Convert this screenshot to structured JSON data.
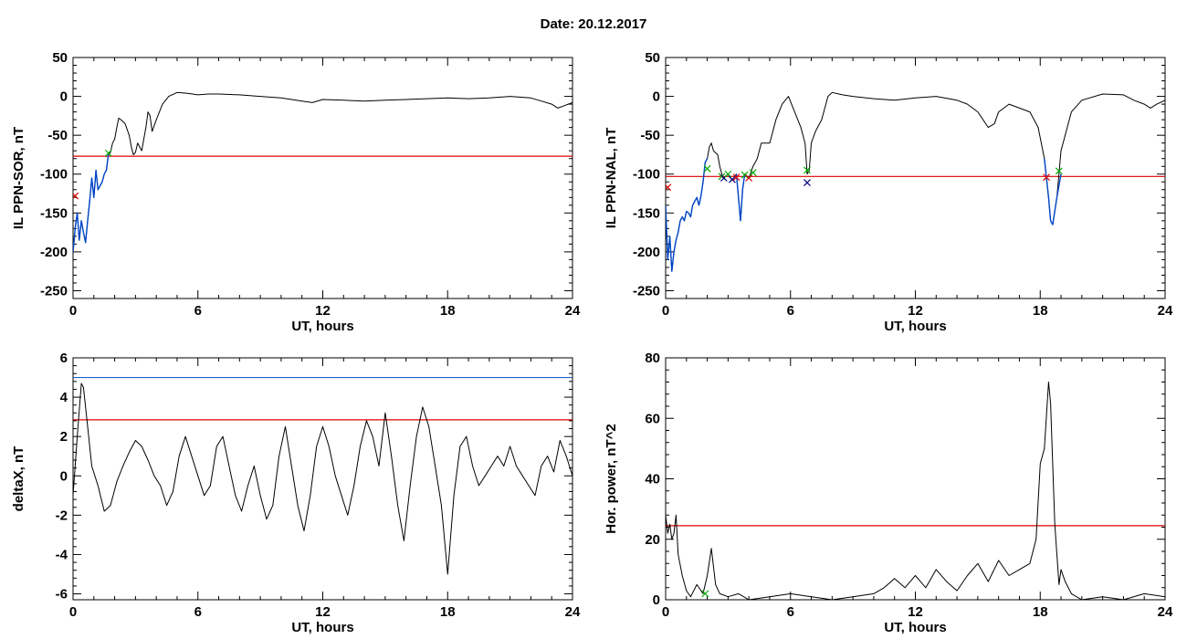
{
  "page": {
    "title": "Date:  20.12.2017"
  },
  "chart_data": [
    {
      "type": "line",
      "xlabel": "UT, hours",
      "ylabel": "IL PPN-SOR, nT",
      "xlim": [
        0,
        24
      ],
      "ylim": [
        -260,
        50
      ],
      "xticks": [
        0,
        6,
        12,
        18,
        24
      ],
      "yticks": [
        50,
        0,
        -50,
        -100,
        -150,
        -200,
        -250
      ],
      "series": [
        {
          "color": "#000000",
          "x": [
            0.0,
            0.1,
            0.2,
            0.3,
            0.4,
            0.5,
            0.6,
            0.7,
            0.8,
            0.9,
            1.0,
            1.1,
            1.2,
            1.3,
            1.4,
            1.5,
            1.6,
            1.7,
            1.8,
            1.9,
            2.0,
            2.1,
            2.2,
            2.3,
            2.5,
            2.7,
            2.8,
            2.9,
            3.0,
            3.1,
            3.2,
            3.3,
            3.4,
            3.5,
            3.6,
            3.7,
            3.8,
            4.0,
            4.3,
            4.6,
            5.0,
            5.5,
            6.0,
            6.5,
            7.0,
            8.0,
            9.0,
            10.0,
            11.0,
            11.5,
            12.0,
            13.0,
            14.0,
            15.0,
            16.0,
            17.0,
            18.0,
            19.0,
            20.0,
            21.0,
            22.0,
            22.5,
            23.0,
            23.3,
            23.6,
            23.8,
            24.0
          ],
          "y": [
            -200,
            -170,
            -150,
            -185,
            -160,
            -175,
            -188,
            -160,
            -135,
            -105,
            -130,
            -95,
            -120,
            -115,
            -110,
            -100,
            -95,
            -75,
            -72,
            -60,
            -55,
            -40,
            -28,
            -30,
            -35,
            -50,
            -65,
            -75,
            -72,
            -60,
            -65,
            -70,
            -55,
            -40,
            -20,
            -25,
            -45,
            -30,
            -10,
            0,
            5,
            4,
            2,
            3,
            3,
            2,
            0,
            -2,
            -6,
            -8,
            -4,
            -5,
            -6,
            -5,
            -4,
            -3,
            -2,
            -3,
            -2,
            0,
            -2,
            -6,
            -10,
            -15,
            -12,
            -10,
            -8
          ]
        },
        {
          "color": "#0046c8",
          "x": [
            0.0,
            0.1,
            0.2,
            0.3,
            0.4,
            0.5,
            0.6,
            0.7,
            0.8,
            0.9,
            1.0,
            1.1,
            1.2,
            1.3,
            1.4,
            1.5,
            1.6,
            1.7
          ],
          "y": [
            -200,
            -170,
            -150,
            -185,
            -160,
            -175,
            -188,
            -160,
            -135,
            -105,
            -130,
            -95,
            -120,
            -115,
            -110,
            -100,
            -95,
            -75
          ]
        }
      ],
      "threshold_lines": [
        {
          "value": -77,
          "color": "#dd0000"
        }
      ],
      "markers": [
        {
          "x": 1.7,
          "y": -73,
          "color": "#00aa00"
        },
        {
          "x": 0.1,
          "y": -128,
          "color": "#dd0000"
        }
      ]
    },
    {
      "type": "line",
      "xlabel": "UT, hours",
      "ylabel": "IL PPN-NAL, nT",
      "xlim": [
        0,
        24
      ],
      "ylim": [
        -260,
        50
      ],
      "xticks": [
        0,
        6,
        12,
        18,
        24
      ],
      "yticks": [
        50,
        0,
        -50,
        -100,
        -150,
        -200,
        -250
      ],
      "series": [
        {
          "color": "#000000",
          "x": [
            0.0,
            0.1,
            0.2,
            0.3,
            0.4,
            0.5,
            0.6,
            0.7,
            0.8,
            0.9,
            1.0,
            1.1,
            1.2,
            1.3,
            1.4,
            1.5,
            1.6,
            1.7,
            1.8,
            1.9,
            2.0,
            2.1,
            2.2,
            2.3,
            2.5,
            2.6,
            2.7,
            2.8,
            3.0,
            3.2,
            3.4,
            3.5,
            3.6,
            3.7,
            3.8,
            4.0,
            4.2,
            4.4,
            4.6,
            5.0,
            5.3,
            5.6,
            5.9,
            6.2,
            6.5,
            6.7,
            6.8,
            6.9,
            7.0,
            7.2,
            7.5,
            7.8,
            8.0,
            8.5,
            9.0,
            10.0,
            11.0,
            12.0,
            13.0,
            14.0,
            14.5,
            15.0,
            15.5,
            15.8,
            16.0,
            16.5,
            17.0,
            17.5,
            17.9,
            18.2,
            18.4,
            18.5,
            18.6,
            18.8,
            19.0,
            19.5,
            20.0,
            21.0,
            22.0,
            22.5,
            23.0,
            23.3,
            23.6,
            24.0
          ],
          "y": [
            -140,
            -210,
            -180,
            -225,
            -200,
            -185,
            -175,
            -160,
            -155,
            -160,
            -148,
            -150,
            -155,
            -140,
            -135,
            -130,
            -140,
            -128,
            -110,
            -85,
            -80,
            -65,
            -60,
            -70,
            -75,
            -90,
            -100,
            -105,
            -100,
            -108,
            -100,
            -130,
            -160,
            -120,
            -100,
            -105,
            -90,
            -80,
            -60,
            -60,
            -30,
            -10,
            0,
            -20,
            -40,
            -60,
            -100,
            -95,
            -60,
            -45,
            -30,
            0,
            5,
            2,
            0,
            -3,
            -5,
            -2,
            0,
            -5,
            -10,
            -20,
            -40,
            -35,
            -20,
            -10,
            -15,
            -20,
            -40,
            -80,
            -130,
            -160,
            -165,
            -130,
            -70,
            -20,
            -5,
            3,
            2,
            -5,
            -10,
            -15,
            -10,
            -5
          ]
        },
        {
          "color": "#0046c8",
          "x": [
            0.0,
            0.1,
            0.2,
            0.3,
            0.4,
            0.5,
            0.6,
            0.7,
            0.8,
            0.9,
            1.0,
            1.1,
            1.2,
            1.3,
            1.4,
            1.5,
            1.6,
            1.7,
            1.8,
            1.9,
            2.0
          ],
          "y": [
            -140,
            -210,
            -180,
            -225,
            -200,
            -185,
            -175,
            -160,
            -155,
            -160,
            -148,
            -150,
            -155,
            -140,
            -135,
            -130,
            -140,
            -128,
            -110,
            -85,
            -80
          ]
        },
        {
          "color": "#0046c8",
          "x": [
            3.4,
            3.5,
            3.6,
            3.7,
            3.8
          ],
          "y": [
            -100,
            -130,
            -160,
            -120,
            -100
          ]
        },
        {
          "color": "#0046c8",
          "x": [
            18.2,
            18.4,
            18.5,
            18.6,
            18.8,
            19.0
          ],
          "y": [
            -80,
            -130,
            -160,
            -165,
            -130,
            -100
          ]
        }
      ],
      "threshold_lines": [
        {
          "value": -103,
          "color": "#dd0000"
        }
      ],
      "markers": [
        {
          "x": 2.0,
          "y": -93,
          "color": "#00aa00"
        },
        {
          "x": 2.7,
          "y": -103,
          "color": "#00aa00"
        },
        {
          "x": 2.8,
          "y": -105,
          "color": "#000080"
        },
        {
          "x": 3.0,
          "y": -100,
          "color": "#00aa00"
        },
        {
          "x": 3.2,
          "y": -107,
          "color": "#000080"
        },
        {
          "x": 3.4,
          "y": -104,
          "color": "#dd0000"
        },
        {
          "x": 3.8,
          "y": -101,
          "color": "#00aa00"
        },
        {
          "x": 4.0,
          "y": -105,
          "color": "#dd0000"
        },
        {
          "x": 4.2,
          "y": -98,
          "color": "#00aa00"
        },
        {
          "x": 6.8,
          "y": -95,
          "color": "#00aa00"
        },
        {
          "x": 6.8,
          "y": -111,
          "color": "#000080"
        },
        {
          "x": 18.3,
          "y": -104,
          "color": "#dd0000"
        },
        {
          "x": 18.9,
          "y": -96,
          "color": "#00aa00"
        },
        {
          "x": 0.1,
          "y": -117,
          "color": "#dd0000"
        }
      ]
    },
    {
      "type": "line",
      "xlabel": "UT, hours",
      "ylabel": "deltaX, nT",
      "xlim": [
        0,
        24
      ],
      "ylim": [
        -6.3,
        6
      ],
      "xticks": [
        0,
        6,
        12,
        18,
        24
      ],
      "yticks": [
        6,
        4,
        2,
        0,
        -2,
        -4,
        -6
      ],
      "series": [
        {
          "color": "#000000",
          "x": [
            0.0,
            0.2,
            0.4,
            0.5,
            0.7,
            0.9,
            1.2,
            1.5,
            1.8,
            2.1,
            2.4,
            2.7,
            3.0,
            3.3,
            3.6,
            3.9,
            4.2,
            4.5,
            4.8,
            5.1,
            5.4,
            5.7,
            6.0,
            6.3,
            6.6,
            6.9,
            7.2,
            7.5,
            7.8,
            8.1,
            8.4,
            8.7,
            9.0,
            9.3,
            9.6,
            9.9,
            10.2,
            10.5,
            10.8,
            11.1,
            11.4,
            11.7,
            12.0,
            12.3,
            12.6,
            12.9,
            13.2,
            13.5,
            13.8,
            14.1,
            14.4,
            14.7,
            15.0,
            15.3,
            15.6,
            15.9,
            16.2,
            16.5,
            16.8,
            17.1,
            17.4,
            17.7,
            18.0,
            18.3,
            18.6,
            18.9,
            19.2,
            19.5,
            19.8,
            20.1,
            20.4,
            20.7,
            21.0,
            21.3,
            21.6,
            21.9,
            22.2,
            22.5,
            22.8,
            23.1,
            23.4,
            23.7,
            24.0
          ],
          "y": [
            -1,
            2,
            4.7,
            4.5,
            2.5,
            0.5,
            -0.5,
            -1.8,
            -1.5,
            -0.3,
            0.5,
            1.2,
            1.8,
            1.5,
            0.8,
            0,
            -0.5,
            -1.5,
            -0.8,
            1,
            2,
            1,
            0,
            -1,
            -0.5,
            1.5,
            2,
            0.5,
            -1,
            -1.8,
            -0.5,
            0.5,
            -1,
            -2.2,
            -1.5,
            1,
            2.5,
            0.5,
            -1.5,
            -2.8,
            -1,
            1.5,
            2.5,
            1.5,
            0,
            -1,
            -2,
            -0.5,
            1.5,
            2.8,
            2,
            0.5,
            3.2,
            1,
            -1.5,
            -3.3,
            -0.5,
            2,
            3.5,
            2.5,
            0.5,
            -1.5,
            -5,
            -1,
            1.5,
            2,
            0.5,
            -0.5,
            0,
            0.5,
            1,
            0.5,
            1.5,
            0.5,
            0,
            -0.5,
            -1,
            0.5,
            1,
            0.2,
            1.8,
            1,
            0
          ]
        }
      ],
      "threshold_lines": [
        {
          "value": 5.0,
          "color": "#1e64c8"
        },
        {
          "value": 2.85,
          "color": "#dd0000"
        }
      ],
      "markers": []
    },
    {
      "type": "line",
      "xlabel": "UT, hours",
      "ylabel": "Hor. power, nT^2",
      "xlim": [
        0,
        24
      ],
      "ylim": [
        0,
        80
      ],
      "xticks": [
        0,
        6,
        12,
        18,
        24
      ],
      "yticks": [
        80,
        60,
        40,
        20,
        0
      ],
      "series": [
        {
          "color": "#000000",
          "x": [
            0.0,
            0.1,
            0.2,
            0.3,
            0.4,
            0.5,
            0.6,
            0.8,
            1.0,
            1.2,
            1.5,
            1.8,
            2.0,
            2.2,
            2.4,
            2.6,
            3.0,
            3.5,
            4.0,
            5.0,
            6.0,
            7.0,
            8.0,
            9.0,
            10.0,
            10.5,
            11.0,
            11.5,
            12.0,
            12.5,
            13.0,
            13.5,
            14.0,
            14.5,
            15.0,
            15.5,
            16.0,
            16.5,
            17.0,
            17.5,
            17.8,
            18.0,
            18.2,
            18.4,
            18.5,
            18.7,
            18.9,
            19.0,
            19.2,
            19.5,
            20.0,
            21.0,
            22.0,
            23.0,
            24.0
          ],
          "y": [
            28,
            22,
            25,
            20,
            22,
            28,
            15,
            8,
            3,
            1,
            5,
            2,
            8,
            17,
            5,
            2,
            1,
            2,
            0,
            1,
            2,
            1,
            0,
            1,
            2,
            4,
            7,
            4,
            8,
            4,
            10,
            6,
            3,
            8,
            12,
            6,
            13,
            8,
            10,
            12,
            20,
            45,
            50,
            72,
            65,
            25,
            5,
            10,
            6,
            2,
            0,
            1,
            0,
            2,
            1
          ]
        }
      ],
      "threshold_lines": [
        {
          "value": 24.5,
          "color": "#dd0000"
        }
      ],
      "markers": [
        {
          "x": 1.9,
          "y": 2,
          "color": "#00aa00"
        }
      ]
    }
  ]
}
